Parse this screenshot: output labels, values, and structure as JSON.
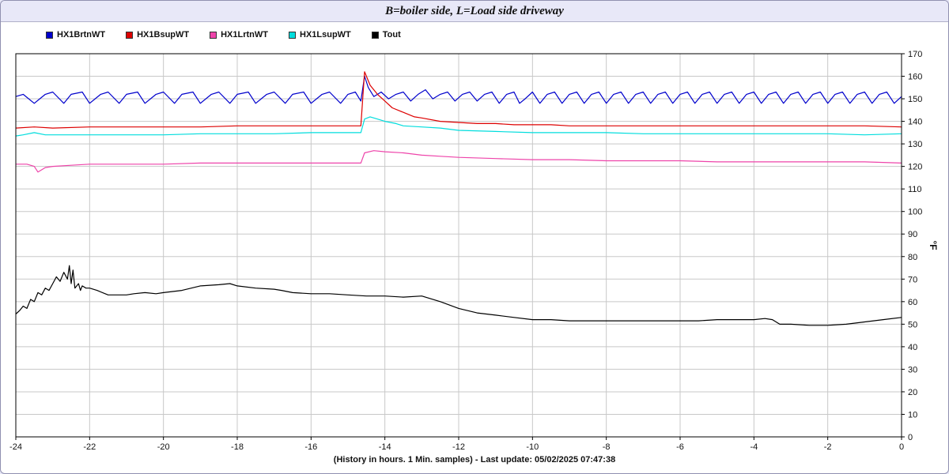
{
  "chart_data": {
    "type": "line",
    "title": "B=boiler side, L=Load side driveway",
    "xlabel": "(History in hours. 1 Min. samples) - Last update: 05/02/2025 07:47:38",
    "ylabel": "°F",
    "xlim": [
      -24,
      0
    ],
    "ylim": [
      0,
      170
    ],
    "x_ticks": [
      -24,
      -22,
      -20,
      -18,
      -16,
      -14,
      -12,
      -10,
      -8,
      -6,
      -4,
      -2,
      0
    ],
    "y_ticks": [
      0,
      10,
      20,
      30,
      40,
      50,
      60,
      70,
      80,
      90,
      100,
      110,
      120,
      130,
      140,
      150,
      160,
      170
    ],
    "grid": true,
    "legend_position": "top-left",
    "series": [
      {
        "name": "HX1BrtnWT",
        "color": "#0000cc",
        "x": [
          -24,
          -23.8,
          -23.5,
          -23.2,
          -23,
          -22.7,
          -22.5,
          -22.2,
          -22,
          -21.7,
          -21.5,
          -21.2,
          -21,
          -20.7,
          -20.5,
          -20.2,
          -20,
          -19.7,
          -19.5,
          -19.2,
          -19,
          -18.7,
          -18.5,
          -18.2,
          -18,
          -17.7,
          -17.5,
          -17.2,
          -17,
          -16.7,
          -16.5,
          -16.2,
          -16,
          -15.7,
          -15.5,
          -15.2,
          -15,
          -14.8,
          -14.65,
          -14.55,
          -14.45,
          -14.3,
          -14.1,
          -13.9,
          -13.7,
          -13.5,
          -13.3,
          -13.1,
          -12.9,
          -12.7,
          -12.5,
          -12.3,
          -12.1,
          -11.9,
          -11.7,
          -11.5,
          -11.3,
          -11.1,
          -10.9,
          -10.7,
          -10.5,
          -10.35,
          -10.2,
          -10,
          -9.8,
          -9.6,
          -9.4,
          -9.2,
          -9,
          -8.8,
          -8.6,
          -8.4,
          -8.2,
          -8,
          -7.8,
          -7.6,
          -7.4,
          -7.2,
          -7,
          -6.8,
          -6.6,
          -6.4,
          -6.2,
          -6,
          -5.8,
          -5.6,
          -5.4,
          -5.2,
          -5,
          -4.8,
          -4.6,
          -4.4,
          -4.2,
          -4,
          -3.8,
          -3.6,
          -3.4,
          -3.2,
          -3,
          -2.8,
          -2.6,
          -2.4,
          -2.2,
          -2,
          -1.8,
          -1.6,
          -1.4,
          -1.2,
          -1,
          -0.8,
          -0.6,
          -0.4,
          -0.2,
          0
        ],
        "y": [
          151,
          152,
          148,
          152,
          153,
          148,
          152,
          153,
          148,
          152,
          153,
          148,
          152,
          153,
          148,
          152,
          153,
          148,
          152,
          153,
          148,
          152,
          153,
          148,
          152,
          153,
          148,
          152,
          153,
          148,
          152,
          153,
          148,
          152,
          153,
          148,
          152,
          153,
          149,
          160,
          155,
          151,
          153,
          150,
          152,
          153,
          149,
          152,
          154,
          150,
          152,
          153,
          149,
          152,
          153,
          149,
          152,
          153,
          148,
          152,
          153,
          148,
          150,
          153,
          148,
          152,
          153,
          148,
          152,
          153,
          148,
          152,
          153,
          148,
          152,
          153,
          148,
          152,
          153,
          148,
          152,
          153,
          148,
          152,
          153,
          148,
          152,
          153,
          148,
          152,
          153,
          148,
          152,
          153,
          148,
          152,
          153,
          148,
          152,
          153,
          148,
          152,
          153,
          148,
          152,
          153,
          148,
          152,
          153,
          148,
          152,
          153,
          148,
          151
        ]
      },
      {
        "name": "HX1BsupWT",
        "color": "#dd0000",
        "x": [
          -24,
          -23.5,
          -23,
          -22,
          -21,
          -20,
          -19,
          -18,
          -17,
          -16,
          -15,
          -14.65,
          -14.55,
          -14.4,
          -14.2,
          -14,
          -13.8,
          -13.5,
          -13.2,
          -13,
          -12.5,
          -12,
          -11.5,
          -11,
          -10.5,
          -10,
          -9.5,
          -9,
          -8,
          -7,
          -6,
          -5,
          -4,
          -3,
          -2,
          -1,
          0
        ],
        "y": [
          137,
          137.5,
          137,
          137.5,
          137.5,
          137.5,
          137.5,
          138,
          138,
          138,
          138,
          138,
          162,
          156,
          152,
          149,
          146,
          144,
          142,
          141.5,
          140,
          139.5,
          139,
          139,
          138.5,
          138.5,
          138.5,
          138,
          138,
          138,
          138,
          138,
          138,
          138,
          138,
          138,
          137.5
        ]
      },
      {
        "name": "HX1LrtnWT",
        "color": "#ee44aa",
        "x": [
          -24,
          -23.7,
          -23.5,
          -23.4,
          -23.2,
          -23,
          -22.5,
          -22,
          -21,
          -20,
          -19,
          -18,
          -17,
          -16,
          -15,
          -14.65,
          -14.55,
          -14.3,
          -14,
          -13.5,
          -13,
          -12.5,
          -12,
          -11,
          -10,
          -9,
          -8,
          -7,
          -6,
          -5,
          -4,
          -3,
          -2,
          -1,
          0
        ],
        "y": [
          121,
          121,
          120,
          117.5,
          119.5,
          120,
          120.5,
          121,
          121,
          121,
          121.5,
          121.5,
          121.5,
          121.5,
          121.5,
          121.5,
          126,
          127,
          126.5,
          126,
          125,
          124.5,
          124,
          123.5,
          123,
          123,
          122.5,
          122.5,
          122.5,
          122,
          122,
          122,
          122,
          122,
          121.5
        ]
      },
      {
        "name": "HX1LsupWT",
        "color": "#00dddd",
        "x": [
          -24,
          -23.8,
          -23.5,
          -23.2,
          -23,
          -22.5,
          -22,
          -21,
          -20,
          -19,
          -18,
          -17,
          -16,
          -15,
          -14.65,
          -14.55,
          -14.4,
          -14.2,
          -14,
          -13.7,
          -13.5,
          -13,
          -12.5,
          -12,
          -11,
          -10,
          -9,
          -8,
          -7,
          -6,
          -5,
          -4,
          -3,
          -2,
          -1,
          0
        ],
        "y": [
          133.5,
          134,
          135,
          134,
          134,
          134,
          134,
          134,
          134,
          134.5,
          134.5,
          134.5,
          135,
          135,
          135,
          141,
          142,
          141,
          140,
          139,
          138,
          137.5,
          137,
          136,
          135.5,
          135,
          135,
          135,
          134.5,
          134.5,
          134.5,
          134.5,
          134.5,
          134.5,
          134,
          134.5
        ]
      },
      {
        "name": "Tout",
        "color": "#000000",
        "x": [
          -24,
          -23.9,
          -23.8,
          -23.7,
          -23.6,
          -23.5,
          -23.4,
          -23.3,
          -23.2,
          -23.1,
          -23,
          -22.9,
          -22.8,
          -22.7,
          -22.6,
          -22.55,
          -22.5,
          -22.45,
          -22.4,
          -22.3,
          -22.25,
          -22.2,
          -22.1,
          -22,
          -21.8,
          -21.5,
          -21.2,
          -21,
          -20.8,
          -20.5,
          -20.2,
          -20,
          -19.5,
          -19,
          -18.5,
          -18.2,
          -18,
          -17.5,
          -17,
          -16.8,
          -16.5,
          -16,
          -15.5,
          -15,
          -14.5,
          -14,
          -13.5,
          -13,
          -12.5,
          -12,
          -11.5,
          -11,
          -10.5,
          -10,
          -9.5,
          -9,
          -8.5,
          -8,
          -7.5,
          -7,
          -6.5,
          -6,
          -5.5,
          -5,
          -4.5,
          -4,
          -3.7,
          -3.5,
          -3.3,
          -3,
          -2.5,
          -2,
          -1.5,
          -1,
          -0.5,
          0
        ],
        "y": [
          54.5,
          56,
          58,
          57,
          61,
          60,
          64,
          63,
          66,
          65,
          68,
          71,
          69,
          73,
          70,
          76,
          68,
          74,
          66,
          68,
          65,
          67,
          66,
          66,
          65,
          63,
          63,
          63,
          63.5,
          64,
          63.5,
          64,
          65,
          67,
          67.5,
          68,
          67,
          66,
          65.5,
          65,
          64,
          63.5,
          63.5,
          63,
          62.5,
          62.5,
          62,
          62.5,
          60,
          57,
          55,
          54,
          53,
          52,
          52,
          51.5,
          51.5,
          51.5,
          51.5,
          51.5,
          51.5,
          51.5,
          51.5,
          52,
          52,
          52,
          52.5,
          52,
          50,
          50,
          49.5,
          49.5,
          50,
          51,
          52,
          53
        ]
      }
    ]
  }
}
